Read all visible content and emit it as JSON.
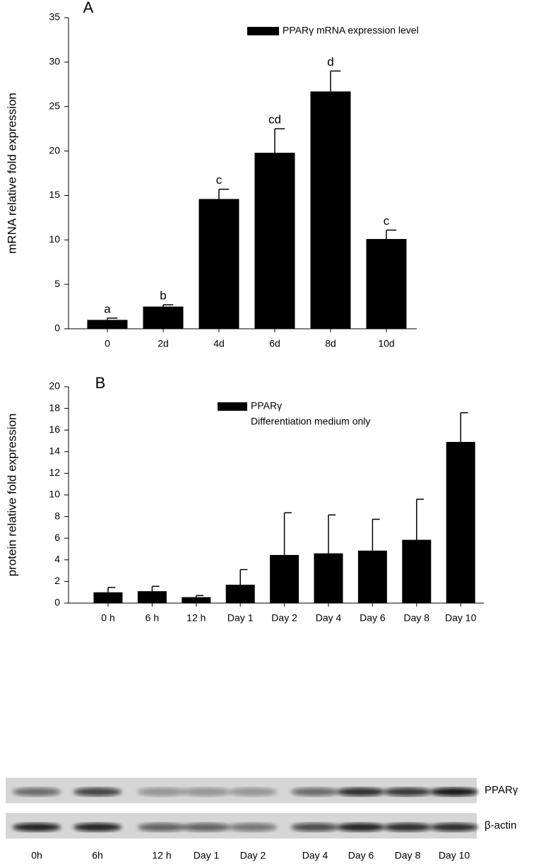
{
  "chart_data": [
    {
      "type": "bar",
      "title": "A",
      "ylabel": "mRNA relative fold expression",
      "categories": [
        "0",
        "2d",
        "4d",
        "6d",
        "8d",
        "10d"
      ],
      "series": [
        {
          "name": "PPARγ mRNA expression level",
          "color": "#000000",
          "values": [
            1.0,
            2.5,
            14.6,
            19.8,
            26.7,
            10.1
          ],
          "errors": [
            0.2,
            0.2,
            1.1,
            2.7,
            2.3,
            1.0
          ]
        }
      ],
      "annotations": [
        "a",
        "b",
        "c",
        "cd",
        "d",
        "c"
      ],
      "ylim": [
        0,
        35
      ],
      "yticks": [
        0,
        5,
        10,
        15,
        20,
        25,
        30,
        35
      ]
    },
    {
      "type": "bar",
      "title": "B",
      "ylabel": "protein relative fold expression",
      "categories": [
        "0 h",
        "6 h",
        "12 h",
        "Day 1",
        "Day 2",
        "Day 4",
        "Day 6",
        "Day 8",
        "Day 10"
      ],
      "series": [
        {
          "name": "PPARγ",
          "color": "#000000",
          "values": [
            1.0,
            1.1,
            0.55,
            1.7,
            4.45,
            4.6,
            4.85,
            5.85,
            14.9
          ],
          "errors": [
            0.45,
            0.45,
            0.15,
            1.4,
            3.9,
            3.55,
            2.9,
            3.75,
            2.7
          ]
        }
      ],
      "legend_note": "Differentiation medium only",
      "ylim": [
        0,
        20
      ],
      "yticks": [
        0,
        2,
        4,
        6,
        8,
        10,
        12,
        14,
        16,
        18,
        20
      ]
    }
  ],
  "blot": {
    "bands": [
      "PPARγ",
      "β-actin"
    ],
    "lanes": [
      "0h",
      "6h",
      "12 h",
      "Day 1",
      "Day 2",
      "Day 4",
      "Day 6",
      "Day 8",
      "Day 10"
    ]
  }
}
